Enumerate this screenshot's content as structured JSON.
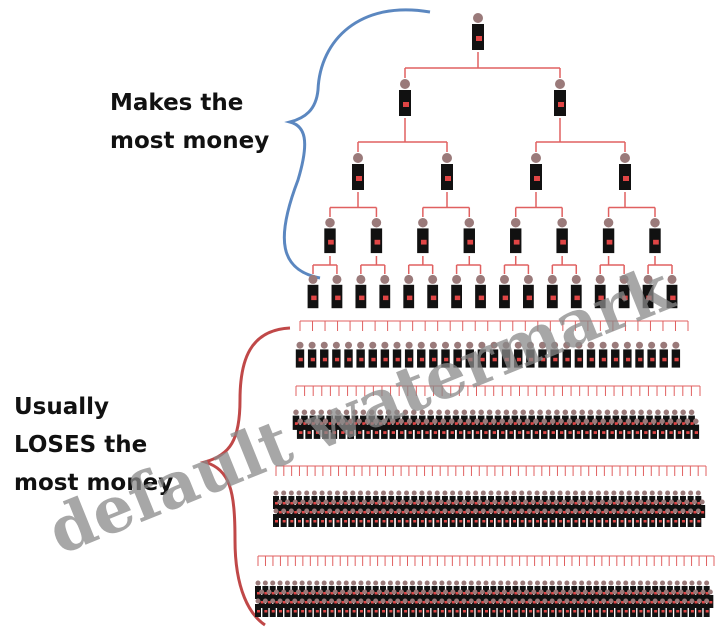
{
  "top_label": [
    "Makes the",
    "most money"
  ],
  "bottom_label": [
    "Usually",
    "LOSES the",
    "most money"
  ],
  "watermark": "default watermark"
}
